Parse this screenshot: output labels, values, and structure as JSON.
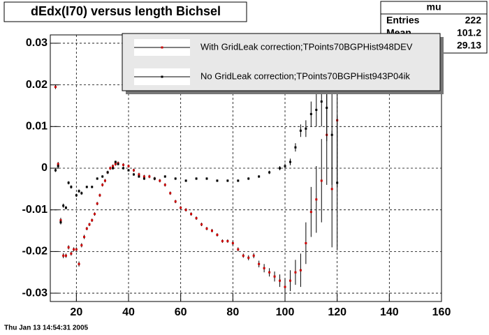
{
  "chart_data": {
    "type": "errorbar-scatter",
    "title": "dEdx(I70) versus length Bichsel",
    "date": "Thu Jan 13 14:54:31 2005",
    "stats": {
      "title": "mu",
      "rows": [
        {
          "label": "Entries",
          "value": "222"
        },
        {
          "label": "Mean",
          "value": "101.2"
        }
      ],
      "rms_value": "29.13"
    },
    "xlim": [
      10,
      160
    ],
    "xticks": [
      20,
      40,
      60,
      80,
      100,
      120,
      140,
      160
    ],
    "ylim": [
      -0.032,
      0.032
    ],
    "yticks": [
      -0.03,
      -0.02,
      -0.01,
      0,
      0.01,
      0.02,
      0.03
    ],
    "grid": true,
    "series": [
      {
        "name": "With GridLeak correction;TPoints70BGPHist948DEV",
        "color": "#cc0000",
        "x": [
          12,
          13,
          14,
          15,
          16,
          17,
          18,
          19,
          20,
          21,
          22,
          23,
          24,
          25,
          26,
          27,
          28,
          29,
          30,
          31,
          32,
          33,
          34,
          35,
          36,
          38,
          40,
          42,
          44,
          46,
          48,
          50,
          52,
          54,
          56,
          58,
          60,
          62,
          64,
          66,
          68,
          70,
          72,
          74,
          76,
          78,
          80,
          82,
          84,
          86,
          88,
          90,
          92,
          94,
          96,
          98,
          100,
          102,
          104,
          106,
          108,
          110,
          112,
          114,
          116,
          118,
          120
        ],
        "values": [
          0.0195,
          0.001,
          -0.0125,
          -0.021,
          -0.021,
          -0.019,
          -0.0205,
          -0.0195,
          -0.0195,
          -0.023,
          -0.0185,
          -0.0165,
          -0.0145,
          -0.0135,
          -0.0125,
          -0.011,
          -0.0085,
          -0.0065,
          -0.004,
          -0.003,
          -0.001,
          0,
          0.0005,
          0.001,
          0.0012,
          0.0008,
          0.0005,
          -0.0005,
          -0.0015,
          -0.002,
          -0.002,
          -0.0025,
          -0.003,
          -0.004,
          -0.006,
          -0.008,
          -0.0095,
          -0.01,
          -0.011,
          -0.012,
          -0.0135,
          -0.0145,
          -0.015,
          -0.016,
          -0.0175,
          -0.0175,
          -0.018,
          -0.0195,
          -0.021,
          -0.0215,
          -0.021,
          -0.023,
          -0.024,
          -0.025,
          -0.026,
          -0.027,
          -0.0285,
          -0.027,
          -0.025,
          -0.0245,
          -0.018,
          -0.0105,
          -0.0075,
          -0.003,
          0.008,
          -0.005,
          0.0115
        ],
        "errors": [
          0.0005,
          0.0005,
          0.0006,
          0.0006,
          0.0005,
          0.0005,
          0.0005,
          0.0005,
          0.0005,
          0.0006,
          0.0005,
          0.0005,
          0.0004,
          0.0004,
          0.0004,
          0.0004,
          0.0004,
          0.0004,
          0.0004,
          0.0004,
          0.0004,
          0.0004,
          0.0004,
          0.0004,
          0.0004,
          0.0004,
          0.0004,
          0.0004,
          0.0004,
          0.0004,
          0.0004,
          0.0004,
          0.0004,
          0.0004,
          0.0004,
          0.0004,
          0.0004,
          0.0004,
          0.0004,
          0.0004,
          0.0004,
          0.0004,
          0.0004,
          0.0004,
          0.0004,
          0.0004,
          0.0005,
          0.0005,
          0.0005,
          0.0006,
          0.0006,
          0.0008,
          0.001,
          0.001,
          0.0012,
          0.0015,
          0.002,
          0.0025,
          0.003,
          0.004,
          0.005,
          0.006,
          0.008,
          0.01,
          0.012,
          0.014,
          0.016
        ]
      },
      {
        "name": "No GridLeak correction;TPoints70BGPHist943P04ik",
        "color": "#000000",
        "x": [
          12,
          13,
          14,
          15,
          16,
          17,
          18,
          20,
          21,
          22,
          24,
          26,
          28,
          30,
          32,
          34,
          35,
          36,
          38,
          40,
          42,
          44,
          46,
          50,
          54,
          58,
          62,
          66,
          70,
          74,
          78,
          82,
          86,
          90,
          94,
          98,
          100,
          102,
          104,
          106,
          108,
          110,
          112,
          114,
          116,
          118,
          120
        ],
        "values": [
          -0.0005,
          0.0005,
          -0.013,
          -0.009,
          -0.0095,
          -0.0035,
          -0.0045,
          -0.0065,
          -0.0055,
          -0.006,
          -0.0045,
          -0.0045,
          -0.0025,
          -0.002,
          -0.001,
          0,
          0.0015,
          0.001,
          0,
          -0.0005,
          -0.0015,
          -0.002,
          -0.0025,
          -0.0025,
          -0.002,
          -0.0025,
          -0.003,
          -0.0025,
          -0.0025,
          -0.003,
          -0.003,
          -0.003,
          -0.0025,
          -0.002,
          -0.001,
          0,
          0.0005,
          0.0015,
          0.005,
          0.009,
          0.0095,
          0.013,
          0.014,
          0.016,
          0.0145,
          0.008,
          -0.0035
        ],
        "errors": [
          0.0004,
          0.0004,
          0.0005,
          0.0005,
          0.0004,
          0.0004,
          0.0004,
          0.0004,
          0.0004,
          0.0004,
          0.0003,
          0.0003,
          0.0003,
          0.0003,
          0.0003,
          0.0003,
          0.0003,
          0.0003,
          0.0003,
          0.0003,
          0.0003,
          0.0003,
          0.0003,
          0.0003,
          0.0003,
          0.0003,
          0.0003,
          0.0003,
          0.0003,
          0.0003,
          0.0003,
          0.0003,
          0.0003,
          0.0003,
          0.0004,
          0.0005,
          0.0006,
          0.0008,
          0.001,
          0.0015,
          0.002,
          0.003,
          0.004,
          0.006,
          0.008,
          0.012,
          0.016
        ]
      }
    ]
  }
}
